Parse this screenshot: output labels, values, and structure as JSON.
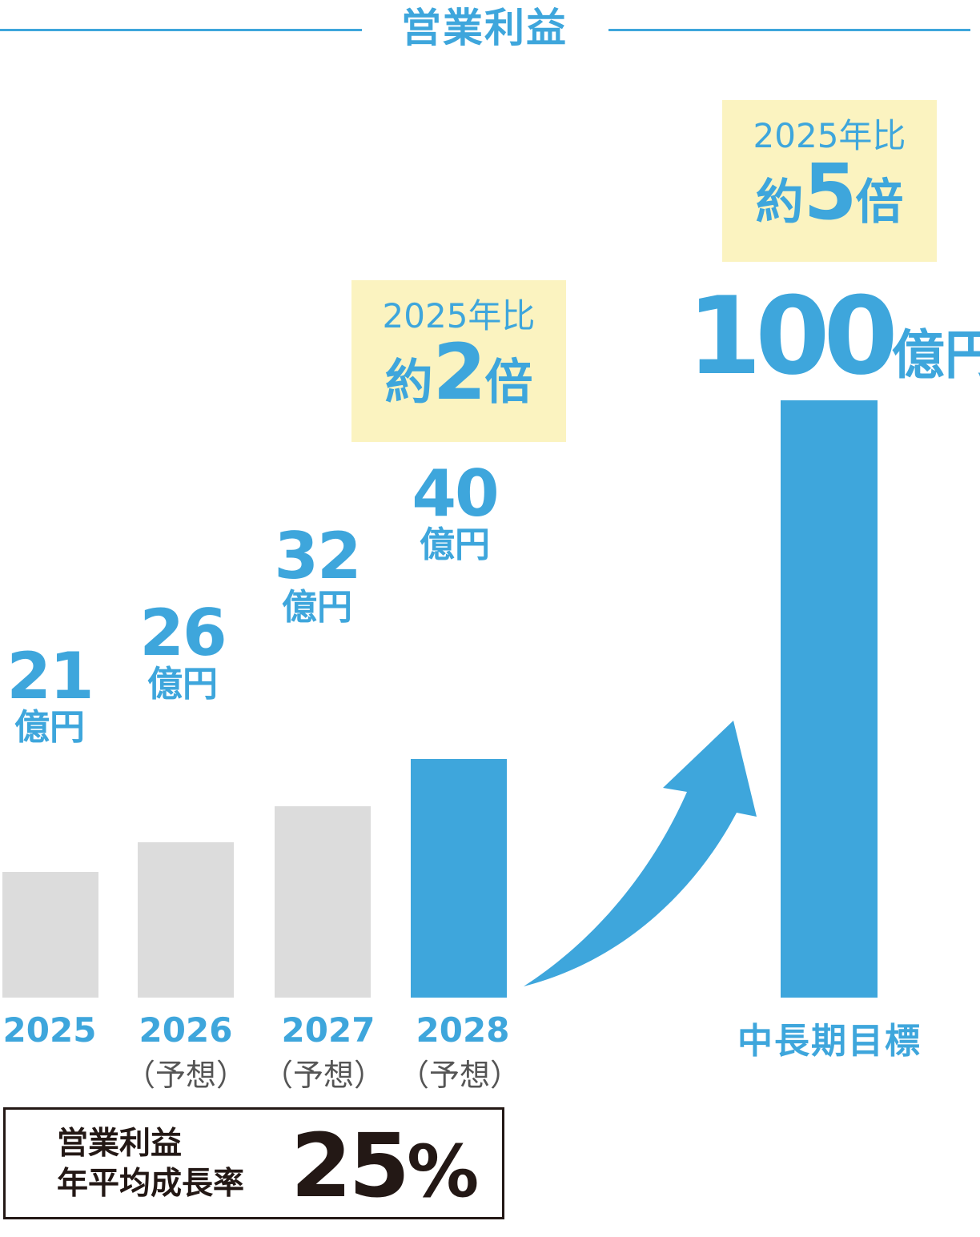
{
  "title": "営業利益",
  "chart_data": {
    "type": "bar",
    "title": "営業利益",
    "unit": "億円",
    "categories": [
      "2025",
      "2026",
      "2027",
      "2028",
      "中長期目標"
    ],
    "sub_labels": [
      "",
      "（予想）",
      "（予想）",
      "（予想）",
      ""
    ],
    "values": [
      21,
      26,
      32,
      40,
      100
    ],
    "colors": [
      "#dcdcdc",
      "#dcdcdc",
      "#dcdcdc",
      "#3ea6dc",
      "#3ea6dc"
    ],
    "ylim": [
      0,
      100
    ],
    "grid": false
  },
  "bars": [
    {
      "year": "2025",
      "sub": "",
      "value": "21",
      "unit": "億円"
    },
    {
      "year": "2026",
      "sub": "（予想）",
      "value": "26",
      "unit": "億円"
    },
    {
      "year": "2027",
      "sub": "（予想）",
      "value": "32",
      "unit": "億円"
    },
    {
      "year": "2028",
      "sub": "（予想）",
      "value": "40",
      "unit": "億円"
    }
  ],
  "target": {
    "label": "中長期目標",
    "value": "100",
    "unit": "億円"
  },
  "callouts": [
    {
      "top": "2025年比",
      "prefix": "約",
      "num": "2",
      "suffix": "倍"
    },
    {
      "top": "2025年比",
      "prefix": "約",
      "num": "5",
      "suffix": "倍"
    }
  ],
  "growth": {
    "label_line1": "営業利益",
    "label_line2": "年平均成長率",
    "value": "25",
    "pct": "%"
  },
  "colors": {
    "accent": "#3ea6dc",
    "gray_bar": "#dcdcdc",
    "callout_bg": "#fbf3c0",
    "text_dark": "#231815"
  }
}
